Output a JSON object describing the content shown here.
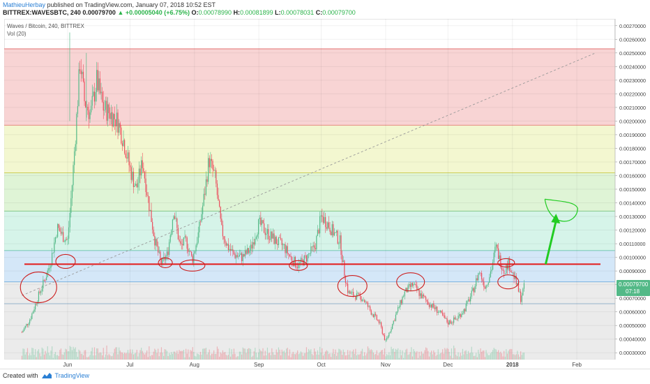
{
  "header": {
    "author": "MathieuHerbay",
    "published_text": "published on TradingView.com, January 07, 2018 10:52 EST",
    "symbol": "BITTREX:WAVESBTC, 240",
    "last": "0.00079700",
    "change_arrow": "▲",
    "change": "+0.00005040 (+6.75%)",
    "o_label": "O:",
    "o_value": "0.00078990",
    "h_label": "H:",
    "h_value": "0.00081899",
    "l_label": "L:",
    "l_value": "0.00078031",
    "c_label": "C:",
    "c_value": "0.00079700"
  },
  "legend": {
    "title": "Waves / Bitcoin, 240, BITTREX",
    "indicator": "Vol (20)"
  },
  "price_badge": {
    "price": "0.00079700",
    "time": "07:18"
  },
  "footer": {
    "created_with": "Created with",
    "brand": "TradingView"
  },
  "colors": {
    "candle_up": "#53b987",
    "candle_down": "#eb4d5c",
    "support_line": "#e31b1b",
    "annotation": "#cc1e1e",
    "arrow": "#22cc22",
    "badge": "#53b987"
  },
  "chart_data": {
    "type": "candlestick",
    "title": "Waves / Bitcoin, 240, BITTREX",
    "y_scale": "linear",
    "ylim": [
      0.00025,
      0.00275
    ],
    "y_ticks": [
      "0.00270000",
      "0.00260000",
      "0.00250000",
      "0.00240000",
      "0.00230000",
      "0.00220000",
      "0.00210000",
      "0.00200000",
      "0.00190000",
      "0.00180000",
      "0.00170000",
      "0.00160000",
      "0.00150000",
      "0.00140000",
      "0.00130000",
      "0.00120000",
      "0.00110000",
      "0.00100000",
      "0.00090000",
      "0.00080000",
      "0.00070000",
      "0.00060000",
      "0.00050000",
      "0.00040000",
      "0.00030000"
    ],
    "x_ticks": [
      "Jun",
      "Jul",
      "Aug",
      "Sep",
      "Oct",
      "Nov",
      "Dec",
      "2018",
      "Feb"
    ],
    "grid": true,
    "fib_levels": [
      0.00253,
      0.00197,
      0.00162,
      0.00134,
      0.00105,
      0.00082,
      0.00066
    ],
    "fib_zone_colors": [
      "#f5c6c6",
      "#eff4c0",
      "#d4f0c8",
      "#c8f0e2",
      "#c6dff5",
      "#e4e4e4"
    ],
    "support_level": 0.00095,
    "trend_line": {
      "from": [
        "May 10",
        0.00072
      ],
      "to": [
        "Feb 10",
        0.0025
      ]
    },
    "price_path": [
      [
        "May 10",
        0.00045
      ],
      [
        "May 14",
        0.00055
      ],
      [
        "May 18",
        0.00072
      ],
      [
        "May 22",
        0.00088
      ],
      [
        "May 24",
        0.00098
      ],
      [
        "May 27",
        0.00122
      ],
      [
        "May 30",
        0.00115
      ],
      [
        "Jun 1",
        0.00112
      ],
      [
        "Jun 3",
        0.0015
      ],
      [
        "Jun 5",
        0.00195
      ],
      [
        "Jun 7",
        0.00245
      ],
      [
        "Jun 9",
        0.00215
      ],
      [
        "Jun 12",
        0.00205
      ],
      [
        "Jun 15",
        0.0023
      ],
      [
        "Jun 18",
        0.0021
      ],
      [
        "Jun 22",
        0.00205
      ],
      [
        "Jun 25",
        0.002
      ],
      [
        "Jun 28",
        0.00185
      ],
      [
        "Jul 1",
        0.00165
      ],
      [
        "Jul 4",
        0.0015
      ],
      [
        "Jul 7",
        0.0017
      ],
      [
        "Jul 10",
        0.0014
      ],
      [
        "Jul 13",
        0.00112
      ],
      [
        "Jul 16",
        0.00095
      ],
      [
        "Jul 19",
        0.00102
      ],
      [
        "Jul 22",
        0.00135
      ],
      [
        "Jul 25",
        0.00108
      ],
      [
        "Jul 28",
        0.00112
      ],
      [
        "Jul 31",
        0.00098
      ],
      [
        "Aug 3",
        0.00118
      ],
      [
        "Aug 6",
        0.00148
      ],
      [
        "Aug 8",
        0.00172
      ],
      [
        "Aug 11",
        0.00158
      ],
      [
        "Aug 14",
        0.0012
      ],
      [
        "Aug 17",
        0.00108
      ],
      [
        "Aug 20",
        0.00102
      ],
      [
        "Aug 24",
        0.001
      ],
      [
        "Aug 28",
        0.00106
      ],
      [
        "Sep 1",
        0.00125
      ],
      [
        "Sep 5",
        0.00118
      ],
      [
        "Sep 9",
        0.00112
      ],
      [
        "Sep 13",
        0.00108
      ],
      [
        "Sep 17",
        0.00098
      ],
      [
        "Sep 20",
        0.00094
      ],
      [
        "Sep 24",
        0.001
      ],
      [
        "Sep 28",
        0.00108
      ],
      [
        "Oct 1",
        0.0013
      ],
      [
        "Oct 4",
        0.00125
      ],
      [
        "Oct 7",
        0.00118
      ],
      [
        "Oct 10",
        0.00112
      ],
      [
        "Oct 12",
        0.0009
      ],
      [
        "Oct 14",
        0.00074
      ],
      [
        "Oct 17",
        0.00072
      ],
      [
        "Oct 21",
        0.0007
      ],
      [
        "Oct 25",
        0.0006
      ],
      [
        "Oct 29",
        0.00052
      ],
      [
        "Nov 1",
        0.00038
      ],
      [
        "Nov 4",
        0.0005
      ],
      [
        "Nov 7",
        0.00062
      ],
      [
        "Nov 10",
        0.00074
      ],
      [
        "Nov 14",
        0.0008
      ],
      [
        "Nov 18",
        0.00072
      ],
      [
        "Nov 22",
        0.00066
      ],
      [
        "Nov 26",
        0.00061
      ],
      [
        "Dec 1",
        0.00052
      ],
      [
        "Dec 5",
        0.00055
      ],
      [
        "Dec 9",
        0.00062
      ],
      [
        "Dec 13",
        0.00075
      ],
      [
        "Dec 16",
        0.0009
      ],
      [
        "Dec 19",
        0.00078
      ],
      [
        "Dec 22",
        0.00092
      ],
      [
        "Dec 24",
        0.00108
      ],
      [
        "Dec 26",
        0.00098
      ],
      [
        "Dec 28",
        0.0009
      ],
      [
        "Dec 30",
        0.00096
      ],
      [
        "Jan 2",
        0.00085
      ],
      [
        "Jan 5",
        0.0007
      ],
      [
        "Jan 7",
        0.0008
      ]
    ],
    "annotations": [
      {
        "shape": "ellipse",
        "x": "May 18",
        "y": 0.00078
      },
      {
        "shape": "ellipse",
        "x": "May 31",
        "y": 0.00097
      },
      {
        "shape": "ellipse",
        "x": "Jul 18",
        "y": 0.00096
      },
      {
        "shape": "ellipse",
        "x": "Jul 31",
        "y": 0.00094
      },
      {
        "shape": "ellipse",
        "x": "Sep 20",
        "y": 0.00094
      },
      {
        "shape": "ellipse",
        "x": "Oct 16",
        "y": 0.00079
      },
      {
        "shape": "ellipse",
        "x": "Nov 13",
        "y": 0.00082
      },
      {
        "shape": "ellipse",
        "x": "Dec 29",
        "y": 0.00096
      },
      {
        "shape": "ellipse",
        "x": "Dec 30",
        "y": 0.00082
      },
      {
        "shape": "arrow",
        "from": [
          "Jan 17",
          0.00095
        ],
        "to": [
          "Jan 22",
          0.00131
        ]
      },
      {
        "shape": "cup",
        "x": "Jan 25",
        "y": 0.00135
      }
    ]
  }
}
